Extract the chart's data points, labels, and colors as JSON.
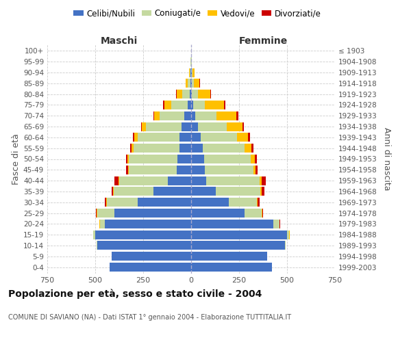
{
  "age_groups": [
    "0-4",
    "5-9",
    "10-14",
    "15-19",
    "20-24",
    "25-29",
    "30-34",
    "35-39",
    "40-44",
    "45-49",
    "50-54",
    "55-59",
    "60-64",
    "65-69",
    "70-74",
    "75-79",
    "80-84",
    "85-89",
    "90-94",
    "95-99",
    "100+"
  ],
  "birth_years": [
    "1999-2003",
    "1994-1998",
    "1989-1993",
    "1984-1988",
    "1979-1983",
    "1974-1978",
    "1969-1973",
    "1964-1968",
    "1959-1963",
    "1954-1958",
    "1949-1953",
    "1944-1948",
    "1939-1943",
    "1934-1938",
    "1929-1933",
    "1924-1928",
    "1919-1923",
    "1914-1918",
    "1909-1913",
    "1904-1908",
    "≤ 1903"
  ],
  "maschi": {
    "celibi": [
      425,
      415,
      490,
      500,
      450,
      400,
      280,
      195,
      120,
      75,
      70,
      60,
      60,
      50,
      35,
      18,
      8,
      4,
      2,
      1,
      1
    ],
    "coniugati": [
      0,
      0,
      2,
      10,
      25,
      90,
      160,
      210,
      255,
      250,
      255,
      240,
      220,
      185,
      130,
      85,
      40,
      15,
      5,
      2,
      0
    ],
    "vedovi": [
      0,
      0,
      0,
      1,
      2,
      3,
      3,
      3,
      5,
      5,
      8,
      10,
      15,
      22,
      28,
      38,
      28,
      10,
      3,
      1,
      0
    ],
    "divorziati": [
      0,
      0,
      0,
      1,
      2,
      5,
      8,
      8,
      20,
      10,
      8,
      8,
      8,
      5,
      5,
      5,
      2,
      0,
      0,
      0,
      0
    ]
  },
  "femmine": {
    "nubili": [
      420,
      395,
      490,
      500,
      430,
      280,
      195,
      130,
      80,
      72,
      68,
      60,
      50,
      35,
      20,
      10,
      5,
      4,
      3,
      1,
      1
    ],
    "coniugate": [
      0,
      0,
      3,
      12,
      30,
      88,
      148,
      232,
      278,
      252,
      242,
      220,
      190,
      150,
      112,
      62,
      30,
      12,
      5,
      2,
      0
    ],
    "vedove": [
      0,
      0,
      0,
      1,
      2,
      3,
      3,
      5,
      10,
      12,
      22,
      36,
      58,
      82,
      105,
      100,
      65,
      28,
      9,
      2,
      0
    ],
    "divorziate": [
      0,
      0,
      0,
      1,
      3,
      5,
      10,
      15,
      22,
      12,
      10,
      10,
      10,
      8,
      8,
      8,
      3,
      2,
      0,
      0,
      0
    ]
  },
  "colors": {
    "celibi_nubili": "#4472c4",
    "coniugati": "#c5d9a0",
    "vedovi": "#ffc000",
    "divorziati": "#cc0000"
  },
  "xlim": 750,
  "title": "Popolazione per età, sesso e stato civile - 2004",
  "subtitle": "COMUNE DI SAVIANO (NA) - Dati ISTAT 1° gennaio 2004 - Elaborazione TUTTITALIA.IT",
  "ylabel_left": "Fasce di età",
  "ylabel_right": "Anni di nascita",
  "xlabel_left": "Maschi",
  "xlabel_right": "Femmine",
  "background_color": "#ffffff",
  "grid_color": "#cccccc",
  "legend_labels": [
    "Celibi/Nubili",
    "Coniugati/e",
    "Vedovi/e",
    "Divorziati/e"
  ]
}
